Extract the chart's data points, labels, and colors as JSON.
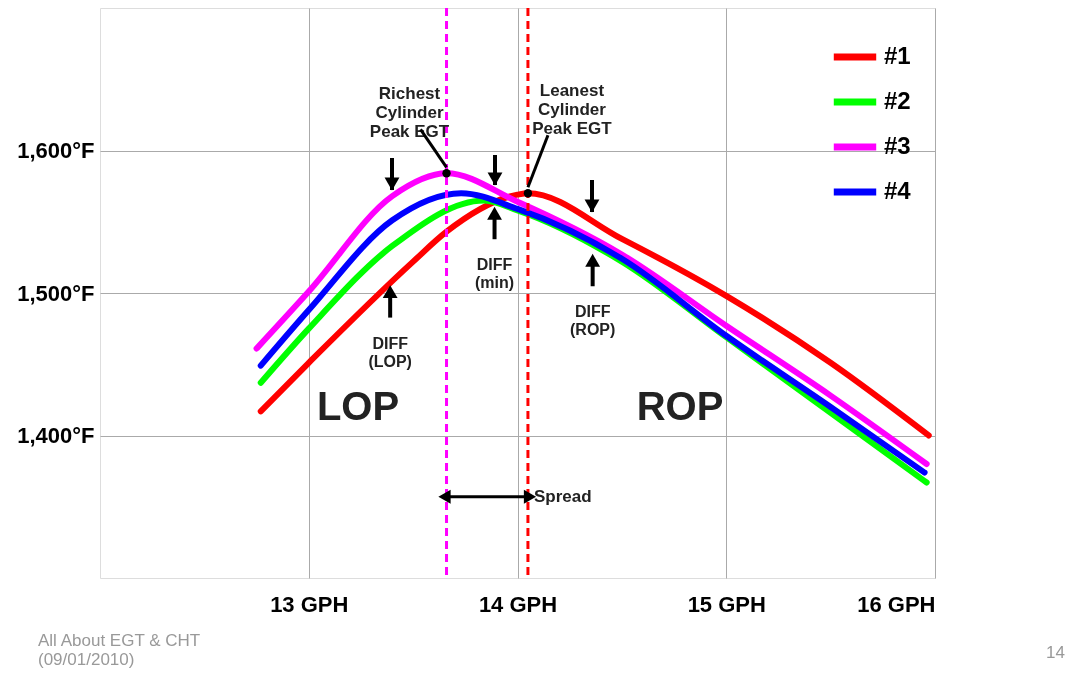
{
  "chart_data": {
    "type": "line",
    "series": [
      {
        "name": "#1",
        "color": "#ff0000",
        "x": [
          12.77,
          13.0,
          13.5,
          13.66,
          14.0,
          14.05,
          14.5,
          15.0,
          15.5,
          15.97
        ],
        "values": [
          1417,
          1451,
          1522,
          1543,
          1569,
          1570,
          1538,
          1498,
          1451,
          1400
        ]
      },
      {
        "name": "#2",
        "color": "#00ff00",
        "x": [
          12.77,
          13.0,
          13.4,
          13.84,
          14.0,
          14.5,
          15.0,
          15.5,
          15.96
        ],
        "values": [
          1437,
          1475,
          1533,
          1565,
          1558,
          1522,
          1469,
          1416,
          1367
        ]
      },
      {
        "name": "#3",
        "color": "#ff00ff",
        "x": [
          12.75,
          13.0,
          13.4,
          13.66,
          14.0,
          14.5,
          15.0,
          15.5,
          15.96
        ],
        "values": [
          1461,
          1501,
          1568,
          1584,
          1564,
          1527,
          1477,
          1428,
          1380
        ]
      },
      {
        "name": "#4",
        "color": "#0000ff",
        "x": [
          12.77,
          13.0,
          13.4,
          13.73,
          14.0,
          14.5,
          15.0,
          15.5,
          15.95
        ],
        "values": [
          1449,
          1488,
          1551,
          1570,
          1559,
          1524,
          1470,
          1420,
          1374
        ]
      }
    ],
    "xlim": [
      12.0,
      16.0
    ],
    "xticks": [
      {
        "value": 13,
        "label": "13 GPH"
      },
      {
        "value": 14,
        "label": "14 GPH"
      },
      {
        "value": 15,
        "label": "15 GPH"
      },
      {
        "value": 16,
        "label": "16 GPH"
      }
    ],
    "ylim": [
      1300,
      1700
    ],
    "yticks": [
      {
        "value": 1400,
        "label": "1,400°F"
      },
      {
        "value": 1500,
        "label": "1,500°F"
      },
      {
        "value": 1600,
        "label": "1,600°F"
      }
    ],
    "grid": true,
    "legend": "top right",
    "line_style": "solid",
    "ref_lines": [
      {
        "axis": "x",
        "value": 13.66,
        "color": "#ff00ff",
        "line_style": "dashed"
      },
      {
        "axis": "x",
        "value": 14.05,
        "color": "#ff0000",
        "line_style": "dashed"
      }
    ],
    "annotations": [
      {
        "text": "Richest\nCylinder\nPeak EGT",
        "x": 13.66,
        "y": 1584
      },
      {
        "text": "Leanest\nCylinder\nPeak EGT",
        "x": 14.05,
        "y": 1570
      },
      {
        "text": "DIFF\n(LOP)",
        "x": 13.39,
        "y": 1508
      },
      {
        "text": "DIFF\n(min)",
        "x": 13.89,
        "y": 1563
      },
      {
        "text": "DIFF\n(ROP)",
        "x": 14.36,
        "y": 1530
      },
      "LOP",
      "ROP",
      {
        "text": "Spread",
        "x": 14.05,
        "y": 1357
      },
      "All About EGT & CHT\n(09/01/2010)",
      "14"
    ]
  }
}
